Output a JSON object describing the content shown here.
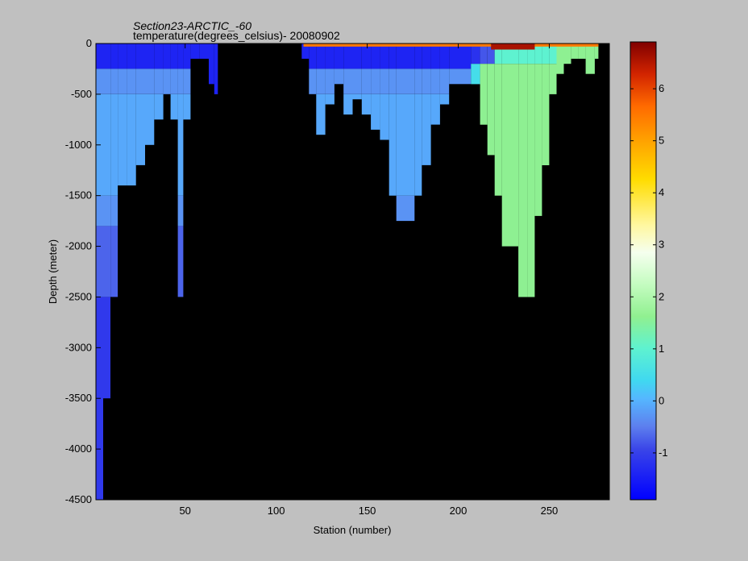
{
  "chart_data": {
    "type": "heatmap",
    "title": "Section23-ARCTIC_-60",
    "subtitle": "temperature(degrees_celsius)- 20080902",
    "xlabel": "Station (number)",
    "ylabel": "Depth (meter)",
    "xlim": [
      1,
      283
    ],
    "ylim": [
      -4500,
      0
    ],
    "x_ticks": [
      50,
      100,
      150,
      200,
      250
    ],
    "y_ticks": [
      0,
      -500,
      -1000,
      -1500,
      -2000,
      -2500,
      -3000,
      -3500,
      -4000,
      -4500
    ],
    "colorbar": {
      "range": [
        -1.9,
        6.9
      ],
      "ticks": [
        -1,
        0,
        1,
        2,
        3,
        4,
        5,
        6
      ]
    },
    "background_color": "#000000",
    "cell_height_m": 50,
    "columns": [
      {
        "x0": 1,
        "x1": 5,
        "bottom": -4500,
        "layers": [
          [
            0,
            -250,
            -1.4
          ],
          [
            -250,
            -500,
            -0.3
          ],
          [
            -500,
            -1500,
            -0.1
          ],
          [
            -1500,
            -1800,
            -0.3
          ],
          [
            -1800,
            -2500,
            -0.7
          ],
          [
            -2500,
            -4500,
            -1.1
          ]
        ]
      },
      {
        "x0": 5,
        "x1": 9,
        "bottom": -3500,
        "layers": [
          [
            0,
            -250,
            -1.4
          ],
          [
            -250,
            -500,
            -0.3
          ],
          [
            -500,
            -1500,
            -0.1
          ],
          [
            -1500,
            -1800,
            -0.3
          ],
          [
            -1800,
            -2500,
            -0.7
          ],
          [
            -2500,
            -3500,
            -1.1
          ]
        ]
      },
      {
        "x0": 9,
        "x1": 13,
        "bottom": -2500,
        "layers": [
          [
            0,
            -250,
            -1.4
          ],
          [
            -250,
            -500,
            -0.3
          ],
          [
            -500,
            -1500,
            -0.1
          ],
          [
            -1500,
            -1800,
            -0.3
          ],
          [
            -1800,
            -2500,
            -0.7
          ]
        ]
      },
      {
        "x0": 13,
        "x1": 18,
        "bottom": -1400,
        "layers": [
          [
            0,
            -250,
            -1.4
          ],
          [
            -250,
            -500,
            -0.3
          ],
          [
            -500,
            -1400,
            -0.1
          ]
        ]
      },
      {
        "x0": 18,
        "x1": 23,
        "bottom": -1400,
        "layers": [
          [
            0,
            -250,
            -1.4
          ],
          [
            -250,
            -500,
            -0.3
          ],
          [
            -500,
            -1400,
            -0.1
          ]
        ]
      },
      {
        "x0": 23,
        "x1": 28,
        "bottom": -1200,
        "layers": [
          [
            0,
            -250,
            -1.4
          ],
          [
            -250,
            -500,
            -0.3
          ],
          [
            -500,
            -1200,
            -0.1
          ]
        ]
      },
      {
        "x0": 28,
        "x1": 33,
        "bottom": -1000,
        "layers": [
          [
            0,
            -250,
            -1.4
          ],
          [
            -250,
            -500,
            -0.3
          ],
          [
            -500,
            -1000,
            -0.1
          ]
        ]
      },
      {
        "x0": 33,
        "x1": 38,
        "bottom": -750,
        "layers": [
          [
            0,
            -250,
            -1.4
          ],
          [
            -250,
            -500,
            -0.3
          ],
          [
            -500,
            -750,
            -0.1
          ]
        ]
      },
      {
        "x0": 38,
        "x1": 42,
        "bottom": -500,
        "layers": [
          [
            0,
            -250,
            -1.4
          ],
          [
            -250,
            -500,
            -0.3
          ]
        ]
      },
      {
        "x0": 42,
        "x1": 46,
        "bottom": -750,
        "layers": [
          [
            0,
            -250,
            -1.4
          ],
          [
            -250,
            -500,
            -0.3
          ],
          [
            -500,
            -750,
            -0.1
          ]
        ]
      },
      {
        "x0": 46,
        "x1": 49,
        "bottom": -2500,
        "layers": [
          [
            0,
            -250,
            -1.4
          ],
          [
            -250,
            -500,
            -0.3
          ],
          [
            -500,
            -1500,
            -0.1
          ],
          [
            -1500,
            -1800,
            -0.3
          ],
          [
            -1800,
            -2500,
            -0.7
          ]
        ]
      },
      {
        "x0": 49,
        "x1": 53,
        "bottom": -750,
        "layers": [
          [
            0,
            -250,
            -1.4
          ],
          [
            -250,
            -500,
            -0.3
          ],
          [
            -500,
            -750,
            -0.1
          ]
        ]
      },
      {
        "x0": 53,
        "x1": 58,
        "bottom": -150,
        "layers": [
          [
            0,
            -150,
            -1.4
          ]
        ]
      },
      {
        "x0": 58,
        "x1": 63,
        "bottom": -150,
        "layers": [
          [
            0,
            -150,
            -1.4
          ]
        ]
      },
      {
        "x0": 63,
        "x1": 66,
        "bottom": -400,
        "layers": [
          [
            0,
            -400,
            -1.4
          ]
        ]
      },
      {
        "x0": 66,
        "x1": 68,
        "bottom": -500,
        "layers": [
          [
            0,
            -500,
            -1.4
          ]
        ]
      },
      {
        "x0": 114,
        "x1": 118,
        "bottom": -150,
        "layers": [
          [
            0,
            -150,
            -1.4
          ]
        ]
      },
      {
        "x0": 118,
        "x1": 122,
        "bottom": -500,
        "layers": [
          [
            0,
            -250,
            -1.4
          ],
          [
            -250,
            -500,
            -0.3
          ]
        ]
      },
      {
        "x0": 122,
        "x1": 127,
        "bottom": -900,
        "layers": [
          [
            0,
            -250,
            -1.4
          ],
          [
            -250,
            -500,
            -0.3
          ],
          [
            -500,
            -900,
            -0.1
          ]
        ]
      },
      {
        "x0": 127,
        "x1": 132,
        "bottom": -600,
        "layers": [
          [
            0,
            -250,
            -1.4
          ],
          [
            -250,
            -500,
            -0.3
          ],
          [
            -500,
            -600,
            -0.1
          ]
        ]
      },
      {
        "x0": 132,
        "x1": 137,
        "bottom": -400,
        "layers": [
          [
            0,
            -250,
            -1.4
          ],
          [
            -250,
            -400,
            -0.3
          ]
        ]
      },
      {
        "x0": 137,
        "x1": 142,
        "bottom": -700,
        "layers": [
          [
            0,
            -250,
            -1.4
          ],
          [
            -250,
            -500,
            -0.3
          ],
          [
            -500,
            -700,
            -0.1
          ]
        ]
      },
      {
        "x0": 142,
        "x1": 147,
        "bottom": -550,
        "layers": [
          [
            0,
            -250,
            -1.4
          ],
          [
            -250,
            -500,
            -0.3
          ],
          [
            -500,
            -550,
            -0.1
          ]
        ]
      },
      {
        "x0": 147,
        "x1": 152,
        "bottom": -700,
        "layers": [
          [
            0,
            -250,
            -1.4
          ],
          [
            -250,
            -500,
            -0.3
          ],
          [
            -500,
            -700,
            -0.1
          ]
        ]
      },
      {
        "x0": 152,
        "x1": 157,
        "bottom": -850,
        "layers": [
          [
            0,
            -250,
            -1.4
          ],
          [
            -250,
            -500,
            -0.3
          ],
          [
            -500,
            -850,
            -0.1
          ]
        ]
      },
      {
        "x0": 157,
        "x1": 162,
        "bottom": -950,
        "layers": [
          [
            0,
            -250,
            -1.4
          ],
          [
            -250,
            -500,
            -0.3
          ],
          [
            -500,
            -950,
            -0.1
          ]
        ]
      },
      {
        "x0": 162,
        "x1": 166,
        "bottom": -1500,
        "layers": [
          [
            0,
            -250,
            -1.4
          ],
          [
            -250,
            -500,
            -0.3
          ],
          [
            -500,
            -1500,
            -0.1
          ]
        ]
      },
      {
        "x0": 166,
        "x1": 171,
        "bottom": -1750,
        "layers": [
          [
            0,
            -250,
            -1.4
          ],
          [
            -250,
            -500,
            -0.3
          ],
          [
            -500,
            -1500,
            -0.1
          ],
          [
            -1500,
            -1750,
            -0.3
          ]
        ]
      },
      {
        "x0": 171,
        "x1": 176,
        "bottom": -1750,
        "layers": [
          [
            0,
            -250,
            -1.4
          ],
          [
            -250,
            -500,
            -0.3
          ],
          [
            -500,
            -1500,
            -0.1
          ],
          [
            -1500,
            -1750,
            -0.3
          ]
        ]
      },
      {
        "x0": 176,
        "x1": 180,
        "bottom": -1500,
        "layers": [
          [
            0,
            -250,
            -1.4
          ],
          [
            -250,
            -500,
            -0.3
          ],
          [
            -500,
            -1500,
            -0.1
          ]
        ]
      },
      {
        "x0": 180,
        "x1": 185,
        "bottom": -1200,
        "layers": [
          [
            0,
            -250,
            -1.4
          ],
          [
            -250,
            -500,
            -0.3
          ],
          [
            -500,
            -1200,
            -0.1
          ]
        ]
      },
      {
        "x0": 185,
        "x1": 190,
        "bottom": -800,
        "layers": [
          [
            0,
            -250,
            -1.4
          ],
          [
            -250,
            -500,
            -0.3
          ],
          [
            -500,
            -800,
            -0.1
          ]
        ]
      },
      {
        "x0": 190,
        "x1": 195,
        "bottom": -600,
        "layers": [
          [
            0,
            -250,
            -1.4
          ],
          [
            -250,
            -500,
            -0.3
          ],
          [
            -500,
            -600,
            -0.1
          ]
        ]
      },
      {
        "x0": 195,
        "x1": 200,
        "bottom": -400,
        "layers": [
          [
            0,
            -250,
            -1.4
          ],
          [
            -250,
            -400,
            -0.3
          ]
        ]
      },
      {
        "x0": 200,
        "x1": 207,
        "bottom": -400,
        "layers": [
          [
            0,
            -250,
            -1.4
          ],
          [
            -250,
            -400,
            -0.3
          ]
        ]
      },
      {
        "x0": 207,
        "x1": 212,
        "bottom": -400,
        "layers": [
          [
            0,
            -200,
            -1.2
          ],
          [
            -200,
            -400,
            0.5
          ]
        ]
      },
      {
        "x0": 212,
        "x1": 216,
        "bottom": -800,
        "layers": [
          [
            0,
            -200,
            -0.8
          ],
          [
            -200,
            -800,
            1.6
          ]
        ]
      },
      {
        "x0": 216,
        "x1": 220,
        "bottom": -1100,
        "layers": [
          [
            0,
            -200,
            -0.8
          ],
          [
            -200,
            -1100,
            1.6
          ]
        ]
      },
      {
        "x0": 220,
        "x1": 224,
        "bottom": -1500,
        "layers": [
          [
            0,
            -200,
            1.0
          ],
          [
            -200,
            -1500,
            1.6
          ]
        ]
      },
      {
        "x0": 224,
        "x1": 229,
        "bottom": -2000,
        "layers": [
          [
            0,
            -200,
            1.0
          ],
          [
            -200,
            -2000,
            1.6
          ]
        ]
      },
      {
        "x0": 229,
        "x1": 233,
        "bottom": -2000,
        "layers": [
          [
            0,
            -200,
            1.0
          ],
          [
            -200,
            -2000,
            1.6
          ]
        ]
      },
      {
        "x0": 233,
        "x1": 238,
        "bottom": -2500,
        "layers": [
          [
            0,
            -200,
            1.0
          ],
          [
            -200,
            -2500,
            1.6
          ]
        ]
      },
      {
        "x0": 238,
        "x1": 242,
        "bottom": -2500,
        "layers": [
          [
            0,
            -200,
            1.0
          ],
          [
            -200,
            -2500,
            1.6
          ]
        ]
      },
      {
        "x0": 242,
        "x1": 246,
        "bottom": -1700,
        "layers": [
          [
            0,
            -200,
            1.0
          ],
          [
            -200,
            -1700,
            1.6
          ]
        ]
      },
      {
        "x0": 246,
        "x1": 250,
        "bottom": -1200,
        "layers": [
          [
            0,
            -200,
            1.0
          ],
          [
            -200,
            -1200,
            1.6
          ]
        ]
      },
      {
        "x0": 250,
        "x1": 254,
        "bottom": -500,
        "layers": [
          [
            0,
            -200,
            1.0
          ],
          [
            -200,
            -500,
            1.6
          ]
        ]
      },
      {
        "x0": 254,
        "x1": 258,
        "bottom": -300,
        "layers": [
          [
            0,
            -300,
            1.6
          ]
        ]
      },
      {
        "x0": 258,
        "x1": 262,
        "bottom": -200,
        "layers": [
          [
            0,
            -200,
            1.6
          ]
        ]
      },
      {
        "x0": 262,
        "x1": 266,
        "bottom": -150,
        "layers": [
          [
            0,
            -150,
            1.6
          ]
        ]
      },
      {
        "x0": 266,
        "x1": 270,
        "bottom": -150,
        "layers": [
          [
            0,
            -150,
            1.6
          ]
        ]
      },
      {
        "x0": 270,
        "x1": 275,
        "bottom": -300,
        "layers": [
          [
            0,
            -300,
            1.6
          ]
        ]
      },
      {
        "x0": 275,
        "x1": 277,
        "bottom": -150,
        "layers": [
          [
            0,
            -150,
            1.6
          ]
        ]
      }
    ],
    "surface_layer": {
      "x0": 115,
      "x1": 277,
      "top": 0,
      "bottom": -30,
      "value": 5.5
    },
    "warm_core": {
      "x0": 218,
      "x1": 242,
      "top": 0,
      "bottom": -60,
      "value": 6.6
    }
  }
}
